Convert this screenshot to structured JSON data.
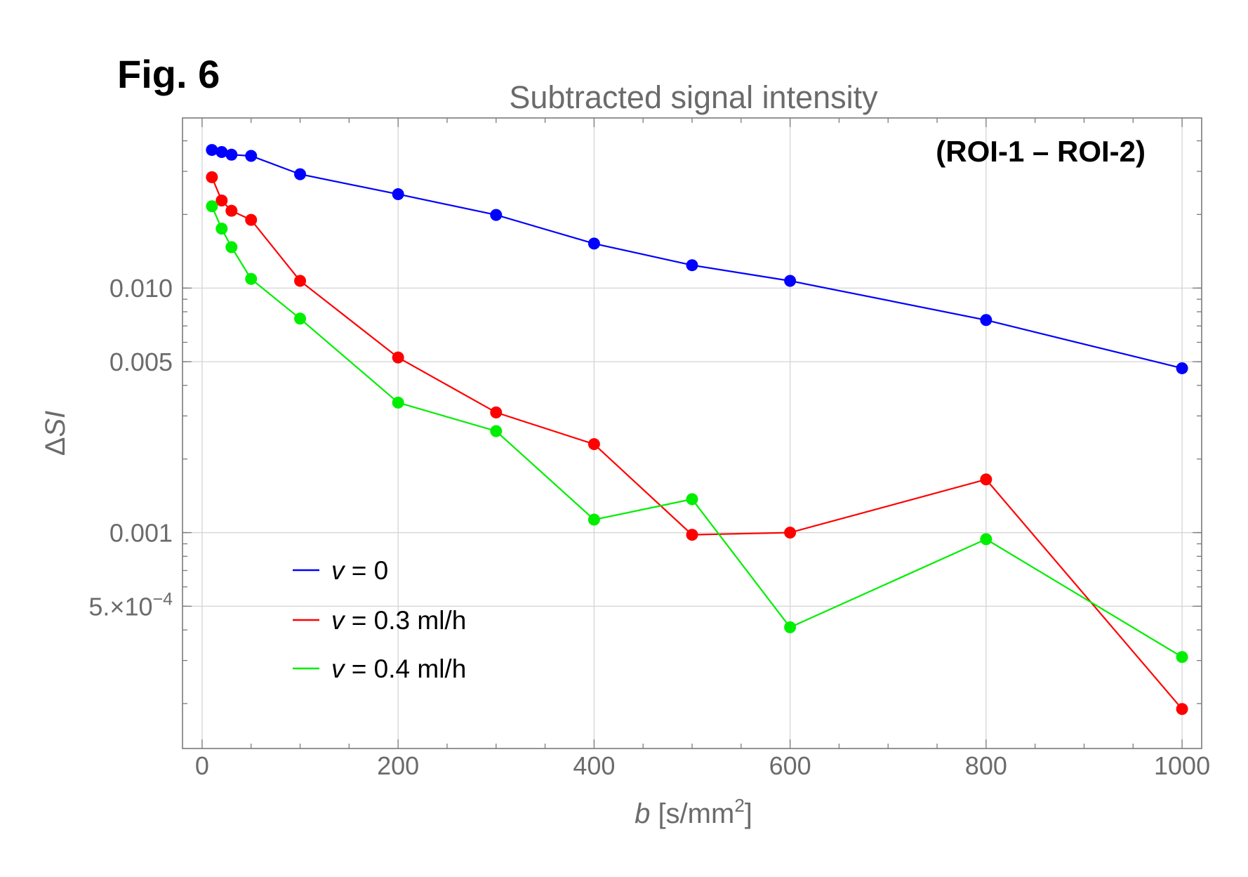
{
  "figure_label": "Fig. 6",
  "annotation": "(ROI-1 – ROI-2)",
  "chart_data": {
    "type": "line",
    "title": "Subtracted signal intensity",
    "xlabel": {
      "var": "b",
      "unit_pre": " [s/mm",
      "sup": "2",
      "unit_post": "]"
    },
    "ylabel": {
      "prefix": "Δ",
      "var": "SI"
    },
    "yscale": "log",
    "xlim": [
      -20,
      1020
    ],
    "ylim": [
      0.000131,
      0.0496
    ],
    "x_ticks": [
      0,
      200,
      400,
      600,
      800,
      1000
    ],
    "x_tick_labels": [
      "0",
      "200",
      "400",
      "600",
      "800",
      "1000"
    ],
    "y_ticks": [
      0.01,
      0.005,
      0.001,
      0.0005
    ],
    "y_tick_labels": [
      "0.010",
      "0.005",
      "0.001",
      "5.×10"
    ],
    "y_tick_exp": {
      "index": 3,
      "exponent": "−4"
    },
    "grid": true,
    "legend_position": "lower-left",
    "x": [
      10,
      20,
      30,
      50,
      100,
      200,
      300,
      400,
      500,
      600,
      800,
      1000
    ],
    "series": [
      {
        "name": "v = 0",
        "legend_var": "v",
        "legend_rest": " = 0",
        "color": "#0000ff",
        "values": [
          0.0367,
          0.036,
          0.0351,
          0.0347,
          0.0292,
          0.0242,
          0.0199,
          0.0152,
          0.0124,
          0.0107,
          0.0074,
          0.0047
        ]
      },
      {
        "name": "v = 0.3 ml/h",
        "legend_var": "v",
        "legend_rest": " = 0.3 ml/h",
        "color": "#ff0000",
        "values": [
          0.0284,
          0.0228,
          0.0207,
          0.019,
          0.0107,
          0.0052,
          0.0031,
          0.0023,
          0.00098,
          0.001,
          0.00165,
          0.00019
        ]
      },
      {
        "name": "v = 0.4 ml/h",
        "legend_var": "v",
        "legend_rest": " = 0.4 ml/h",
        "color": "#00ee00",
        "values": [
          0.0216,
          0.0175,
          0.0147,
          0.0109,
          0.0075,
          0.0034,
          0.0026,
          0.00113,
          0.00137,
          0.00041,
          0.00094,
          0.00031
        ]
      }
    ]
  }
}
